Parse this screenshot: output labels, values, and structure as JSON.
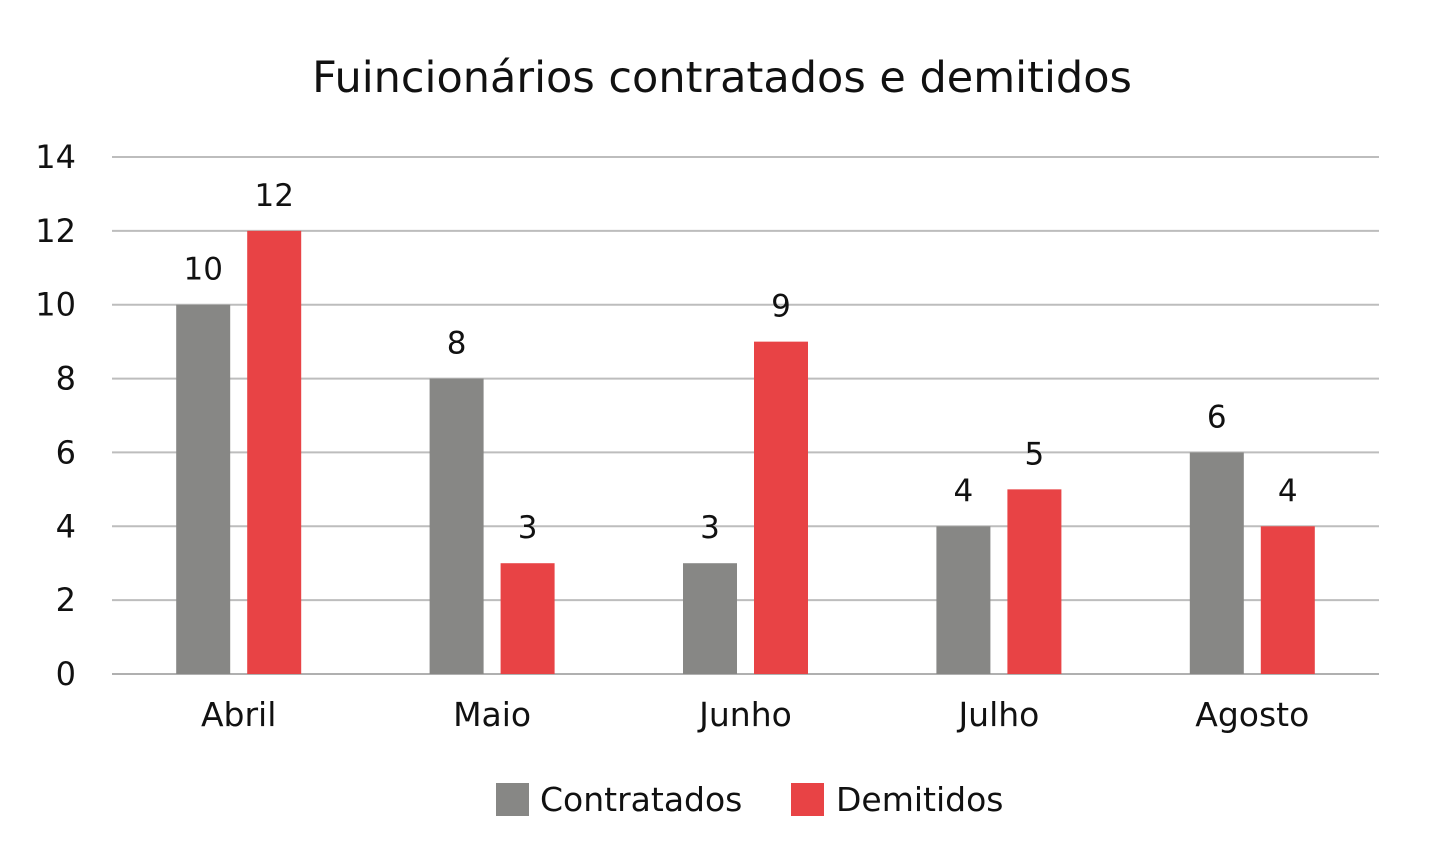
{
  "chart_data": {
    "type": "bar",
    "title": "Fuincionários contratados e demitidos",
    "categories": [
      "Abril",
      "Maio",
      "Junho",
      "Julho",
      "Agosto"
    ],
    "series": [
      {
        "name": "Contratados",
        "values": [
          10,
          8,
          3,
          4,
          6
        ],
        "color": "#878785"
      },
      {
        "name": "Demitidos",
        "values": [
          12,
          3,
          9,
          5,
          4
        ],
        "color": "#e84345"
      }
    ],
    "ylim": [
      0,
      14
    ],
    "yticks": [
      0,
      2,
      4,
      6,
      8,
      10,
      12,
      14
    ],
    "grid": true,
    "legend_position": "bottom",
    "data_labels": true
  }
}
